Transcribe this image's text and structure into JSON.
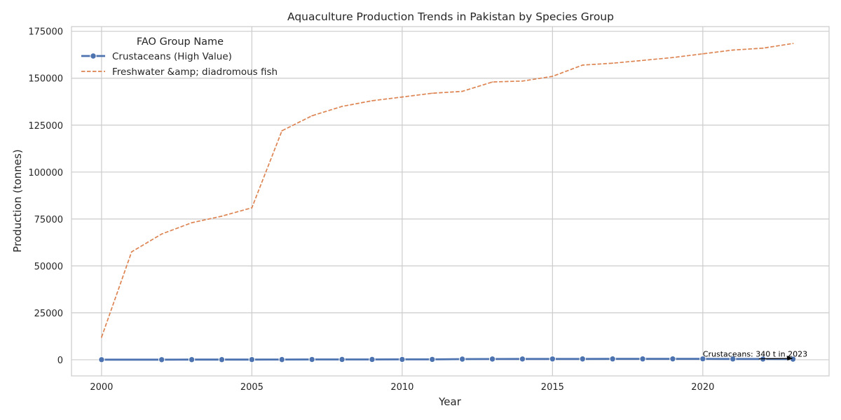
{
  "chart_data": {
    "type": "line",
    "title": "Aquaculture Production Trends in Pakistan by Species Group",
    "xlabel": "Year",
    "ylabel": "Production (tonnes)",
    "xlim": [
      1999,
      2024.2
    ],
    "ylim": [
      -8600,
      177500
    ],
    "xticks": [
      2000,
      2005,
      2010,
      2015,
      2020
    ],
    "yticks": [
      0,
      25000,
      50000,
      75000,
      100000,
      125000,
      150000,
      175000
    ],
    "grid": true,
    "legend": {
      "title": "FAO Group Name",
      "position": "top-left",
      "entries": [
        "Crustaceans (High Value)",
        "Freshwater &amp; diadromous fish"
      ]
    },
    "series": [
      {
        "name": "Crustaceans (High Value)",
        "color": "#4c72b0",
        "style": "solid-marker",
        "x": [
          2000,
          2002,
          2003,
          2004,
          2005,
          2006,
          2007,
          2008,
          2009,
          2010,
          2011,
          2012,
          2013,
          2014,
          2015,
          2016,
          2017,
          2018,
          2019,
          2020,
          2021,
          2022,
          2023
        ],
        "values": [
          50,
          60,
          80,
          90,
          100,
          120,
          150,
          170,
          180,
          190,
          200,
          350,
          400,
          420,
          430,
          440,
          450,
          460,
          470,
          480,
          420,
          380,
          340
        ]
      },
      {
        "name": "Freshwater &amp; diadromous fish",
        "color": "#dd8452",
        "style": "dashed",
        "x": [
          2000,
          2001,
          2002,
          2003,
          2004,
          2005,
          2006,
          2007,
          2008,
          2009,
          2010,
          2011,
          2012,
          2013,
          2014,
          2015,
          2016,
          2017,
          2018,
          2019,
          2020,
          2021,
          2022,
          2023
        ],
        "values": [
          12000,
          57500,
          67000,
          73000,
          76500,
          81000,
          122000,
          130000,
          135000,
          138000,
          140000,
          142000,
          143000,
          148000,
          148500,
          151000,
          157000,
          158000,
          159500,
          161000,
          163000,
          165000,
          166000,
          168500
        ]
      }
    ],
    "annotations": [
      {
        "text": "Crustaceans: 340 t in 2023",
        "x": 2020,
        "y": 1600,
        "arrow_to": [
          2023,
          340
        ]
      }
    ]
  }
}
